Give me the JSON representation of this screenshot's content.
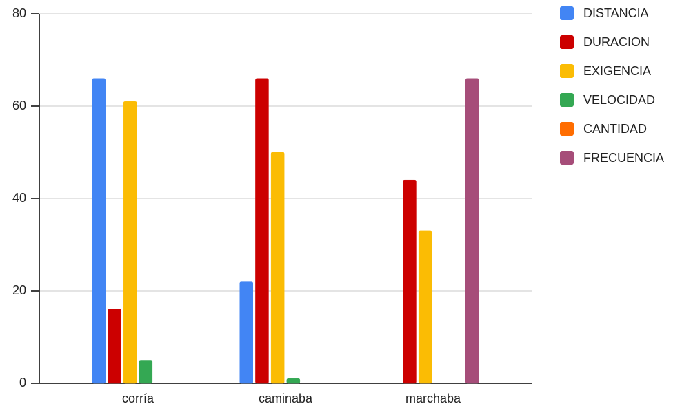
{
  "chart_data": {
    "type": "bar",
    "categories": [
      "corría",
      "caminaba",
      "marchaba"
    ],
    "series": [
      {
        "name": "DISTANCIA",
        "color": "#4285f4",
        "values": [
          66,
          22,
          0
        ]
      },
      {
        "name": "DURACION",
        "color": "#cc0000",
        "values": [
          16,
          66,
          44
        ]
      },
      {
        "name": "EXIGENCIA",
        "color": "#fbbc04",
        "values": [
          61,
          50,
          33
        ]
      },
      {
        "name": "VELOCIDAD",
        "color": "#34a853",
        "values": [
          5,
          1,
          0
        ]
      },
      {
        "name": "CANTIDAD",
        "color": "#ff6d01",
        "values": [
          0,
          0,
          0
        ]
      },
      {
        "name": "FRECUENCIA",
        "color": "#a64d79",
        "values": [
          0,
          0,
          66
        ]
      }
    ],
    "ylim": [
      0,
      80
    ],
    "yticks": [
      0,
      20,
      40,
      60,
      80
    ],
    "grid": true,
    "legend": "right"
  }
}
